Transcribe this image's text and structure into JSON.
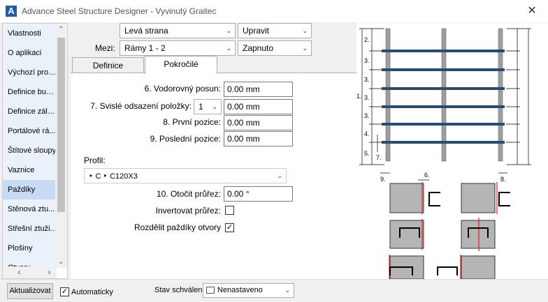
{
  "window": {
    "title": "Advance Steel   Structure Designer - Vyvinutý Graitec",
    "logo_letter": "A",
    "close_glyph": "✕"
  },
  "sidebar": {
    "items": [
      {
        "label": "Vlastnosti",
        "active": false
      },
      {
        "label": "O aplikaci",
        "active": false
      },
      {
        "label": "Výchozí profily",
        "active": false
      },
      {
        "label": "Definice bud...",
        "active": false
      },
      {
        "label": "Definice zálivu",
        "active": false
      },
      {
        "label": "Portálové rá...",
        "active": false
      },
      {
        "label": "Štítové sloupy",
        "active": false
      },
      {
        "label": "Vaznice",
        "active": false
      },
      {
        "label": "Paždíky",
        "active": true
      },
      {
        "label": "Stěnová ztu...",
        "active": false
      },
      {
        "label": "Střešní ztuži...",
        "active": false
      },
      {
        "label": "Plošiny",
        "active": false
      },
      {
        "label": "Otvory",
        "active": false
      }
    ],
    "scroll_up": "⌃",
    "scroll_down": "⌄",
    "scroll_left": "‹",
    "scroll_right": "›"
  },
  "top": {
    "side_combo": "Levá strana",
    "edit_combo": "Upravit",
    "between_label": "Mezi:",
    "frames_combo": "Rámy 1 - 2",
    "state_combo": "Zapnuto",
    "arrow": "⌄"
  },
  "tabs": {
    "definition": "Definice",
    "advanced": "Pokročilé"
  },
  "form": {
    "f6_label": "6. Vodorovný posun:",
    "f6_value": "0.00 mm",
    "f7_label": "7. Svislé odsazení položky:",
    "f7_select": "1",
    "f7_value": "0.00 mm",
    "f8_label": "8. První pozice:",
    "f8_value": "0.00 mm",
    "f9_label": "9. Poslední pozice:",
    "f9_value": "0.00 mm",
    "profile_label": "Profil:",
    "profile_path": "‣ C  ‣  C120X3",
    "f10_label": "10. Otočit průřez:",
    "f10_value": "0.00 °",
    "invert_label": "Invertovat průřez:",
    "invert_checked": false,
    "split_label": "Rozdělit paždíky otvory",
    "split_checked": true,
    "check_glyph": "✓"
  },
  "bottom": {
    "update_button": "Aktualizovat",
    "auto_label": "Automaticky",
    "auto_checked": true,
    "approval_label": "Stav schválení",
    "approval_value": "Nenastaveno"
  },
  "diagram": {
    "dim_labels": [
      "2.",
      "3.",
      "3.",
      "3.",
      "3.",
      "4.",
      "5.",
      "1.",
      "7.",
      "9.",
      "6.",
      "8."
    ],
    "rail_color": "#2b4a6f",
    "red_line_color": "#e0201e"
  },
  "colors": {
    "sidebar_active": "#c9daf3",
    "sidebar_bg": "#eaf1fb",
    "accent": "#1f5fa8"
  }
}
